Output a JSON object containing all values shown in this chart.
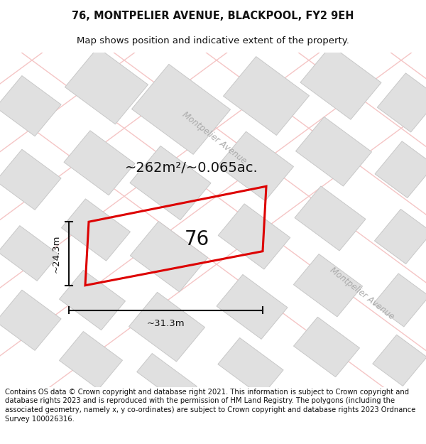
{
  "title": "76, MONTPELIER AVENUE, BLACKPOOL, FY2 9EH",
  "subtitle": "Map shows position and indicative extent of the property.",
  "footnote": "Contains OS data © Crown copyright and database right 2021. This information is subject to Crown copyright and database rights 2023 and is reproduced with the permission of HM Land Registry. The polygons (including the associated geometry, namely x, y co-ordinates) are subject to Crown copyright and database rights 2023 Ordnance Survey 100026316.",
  "area_label": "~262m²/~0.065ac.",
  "width_label": "~31.3m",
  "height_label": "~24.3m",
  "property_label": "76",
  "street_label1": "Montpelier Avenue",
  "street_label2": "Montpelier Avenue",
  "road_color": "#f5c5c5",
  "building_color": "#e0e0e0",
  "building_edge": "#c8c8c8",
  "property_edge": "#dd0000",
  "title_fontsize": 10.5,
  "subtitle_fontsize": 9.5,
  "footnote_fontsize": 7.2,
  "area_fontsize": 14,
  "label_fontsize": 8.5,
  "number_fontsize": 20,
  "meas_fontsize": 9.5,
  "street_fontsize": 8.5
}
